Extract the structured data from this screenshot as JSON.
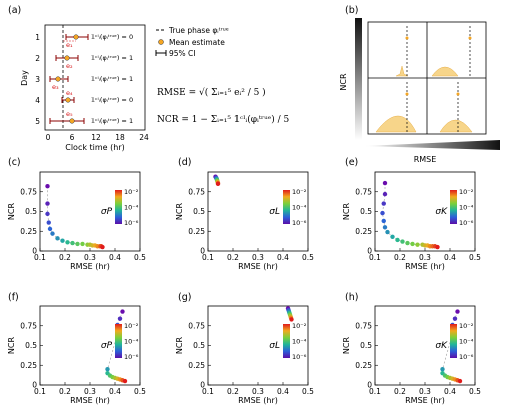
{
  "panel_labels": [
    "(a)",
    "(b)",
    "(c)",
    "(d)",
    "(e)",
    "(f)",
    "(g)",
    "(h)"
  ],
  "panel_a": {
    "ylabel": "Day",
    "xlabel": "Clock time (hr)",
    "xticks": [
      "0",
      "6",
      "12",
      "18",
      "24"
    ],
    "yticks": [
      "1",
      "2",
      "3",
      "4",
      "5"
    ],
    "legend": {
      "true_phase": "True phase φᵢᵗʳᵘᵉ",
      "mean_estimate": "Mean estimate",
      "ci": "95% CI"
    },
    "row_annotations": [
      "𝟙ᶜᴵᵢ(φᵢᵗʳᵘᵉ) = 0",
      "𝟙ᶜᴵᵢ(φᵢᵗʳᵘᵉ) = 1",
      "𝟙ᶜᴵᵢ(φᵢᵗʳᵘᵉ) = 1",
      "𝟙ᶜᴵᵢ(φᵢᵗʳᵘᵉ) = 0",
      "𝟙ᶜᴵᵢ(φᵢᵗʳᵘᵉ) = 1"
    ],
    "errors": [
      "e₁",
      "e₂",
      "e₃",
      "e₄",
      "e₅"
    ],
    "rmse_formula": "RMSE = √( Σᵢ₌₁⁵ eᵢ² / 5 )",
    "ncr_formula": "NCR = 1 − Σᵢ₌₁⁵ 𝟙ᶜᴵᵢ(φᵢᵗʳᵘᵉ) / 5"
  },
  "panel_b": {
    "xlabel": "RMSE",
    "ylabel": "NCR"
  },
  "colorbar": {
    "ticks": [
      "10⁻²",
      "10⁻⁴",
      "10⁻⁶"
    ]
  },
  "colors": {
    "high": "#d7191c",
    "mid": "#2db86e",
    "low": "#6a0dad",
    "yellow": "#f5a623",
    "ci_line": "#8b0000"
  },
  "chart_data": [
    {
      "panel": "c",
      "type": "scatter",
      "xlabel": "RMSE (hr)",
      "ylabel": "NCR",
      "sigma_label": "σP",
      "xlim": [
        0.1,
        0.5
      ],
      "ylim": [
        0,
        1
      ],
      "xticks": [
        "0.1",
        "0.2",
        "0.3",
        "0.4",
        "0.5"
      ],
      "yticks": [
        "0",
        "0.25",
        "0.5",
        "0.75"
      ],
      "x": [
        0.13,
        0.13,
        0.13,
        0.135,
        0.14,
        0.15,
        0.17,
        0.19,
        0.21,
        0.23,
        0.25,
        0.27,
        0.29,
        0.3,
        0.31,
        0.32,
        0.33,
        0.34,
        0.345,
        0.35
      ],
      "y": [
        0.82,
        0.6,
        0.47,
        0.36,
        0.28,
        0.22,
        0.16,
        0.13,
        0.11,
        0.1,
        0.09,
        0.09,
        0.08,
        0.08,
        0.07,
        0.07,
        0.06,
        0.06,
        0.06,
        0.05
      ]
    },
    {
      "panel": "d",
      "type": "scatter",
      "xlabel": "RMSE (hr)",
      "ylabel": "NCR",
      "sigma_label": "σL",
      "xlim": [
        0.1,
        0.5
      ],
      "ylim": [
        0,
        1
      ],
      "xticks": [
        "0.1",
        "0.2",
        "0.3",
        "0.4",
        "0.5"
      ],
      "yticks": [
        "0",
        "0.25",
        "0.5",
        "0.75"
      ],
      "x": [
        0.13,
        0.132,
        0.134,
        0.135,
        0.136,
        0.137,
        0.138,
        0.139,
        0.14,
        0.14
      ],
      "y": [
        0.94,
        0.93,
        0.92,
        0.91,
        0.9,
        0.89,
        0.88,
        0.87,
        0.86,
        0.85
      ]
    },
    {
      "panel": "e",
      "type": "scatter",
      "xlabel": "RMSE (hr)",
      "ylabel": "NCR",
      "sigma_label": "σK",
      "xlim": [
        0.1,
        0.5
      ],
      "ylim": [
        0,
        1
      ],
      "xticks": [
        "0.1",
        "0.2",
        "0.3",
        "0.4",
        "0.5"
      ],
      "yticks": [
        "0",
        "0.25",
        "0.5",
        "0.75"
      ],
      "x": [
        0.14,
        0.14,
        0.135,
        0.13,
        0.135,
        0.14,
        0.15,
        0.17,
        0.19,
        0.21,
        0.23,
        0.25,
        0.27,
        0.29,
        0.3,
        0.31,
        0.32,
        0.33,
        0.34,
        0.35
      ],
      "y": [
        0.86,
        0.72,
        0.6,
        0.48,
        0.38,
        0.3,
        0.24,
        0.18,
        0.14,
        0.12,
        0.1,
        0.09,
        0.08,
        0.08,
        0.07,
        0.07,
        0.06,
        0.06,
        0.06,
        0.05
      ]
    },
    {
      "panel": "f",
      "type": "scatter",
      "xlabel": "RMSE (hr)",
      "ylabel": "NCR",
      "sigma_label": "σP",
      "xlim": [
        0.1,
        0.5
      ],
      "ylim": [
        0,
        1
      ],
      "xticks": [
        "0.1",
        "0.2",
        "0.3",
        "0.4",
        "0.5"
      ],
      "yticks": [
        "0",
        "0.25",
        "0.5",
        "0.75"
      ],
      "x": [
        0.43,
        0.42,
        0.41,
        0.41,
        0.37,
        0.37,
        0.38,
        0.39,
        0.4,
        0.41,
        0.42,
        0.43,
        0.44
      ],
      "y": [
        0.93,
        0.84,
        0.76,
        0.65,
        0.2,
        0.15,
        0.12,
        0.1,
        0.09,
        0.08,
        0.07,
        0.06,
        0.05
      ]
    },
    {
      "panel": "g",
      "type": "scatter",
      "xlabel": "RMSE (hr)",
      "ylabel": "NCR",
      "sigma_label": "σL",
      "xlim": [
        0.1,
        0.5
      ],
      "ylim": [
        0,
        1
      ],
      "xticks": [
        "0.1",
        "0.2",
        "0.3",
        "0.4",
        "0.5"
      ],
      "yticks": [
        "0",
        "0.25",
        "0.5",
        "0.75"
      ],
      "x": [
        0.42,
        0.422,
        0.424,
        0.426,
        0.428,
        0.43,
        0.432,
        0.434
      ],
      "y": [
        0.97,
        0.95,
        0.93,
        0.91,
        0.89,
        0.87,
        0.85,
        0.83
      ]
    },
    {
      "panel": "h",
      "type": "scatter",
      "xlabel": "RMSE (hr)",
      "ylabel": "NCR",
      "sigma_label": "σK",
      "xlim": [
        0.1,
        0.5
      ],
      "ylim": [
        0,
        1
      ],
      "xticks": [
        "0.1",
        "0.2",
        "0.3",
        "0.4",
        "0.5"
      ],
      "yticks": [
        "0",
        "0.25",
        "0.5",
        "0.75"
      ],
      "x": [
        0.43,
        0.42,
        0.41,
        0.41,
        0.37,
        0.37,
        0.38,
        0.39,
        0.4,
        0.41,
        0.42,
        0.43,
        0.44
      ],
      "y": [
        0.93,
        0.84,
        0.76,
        0.65,
        0.2,
        0.15,
        0.12,
        0.1,
        0.09,
        0.08,
        0.07,
        0.06,
        0.05
      ]
    }
  ]
}
